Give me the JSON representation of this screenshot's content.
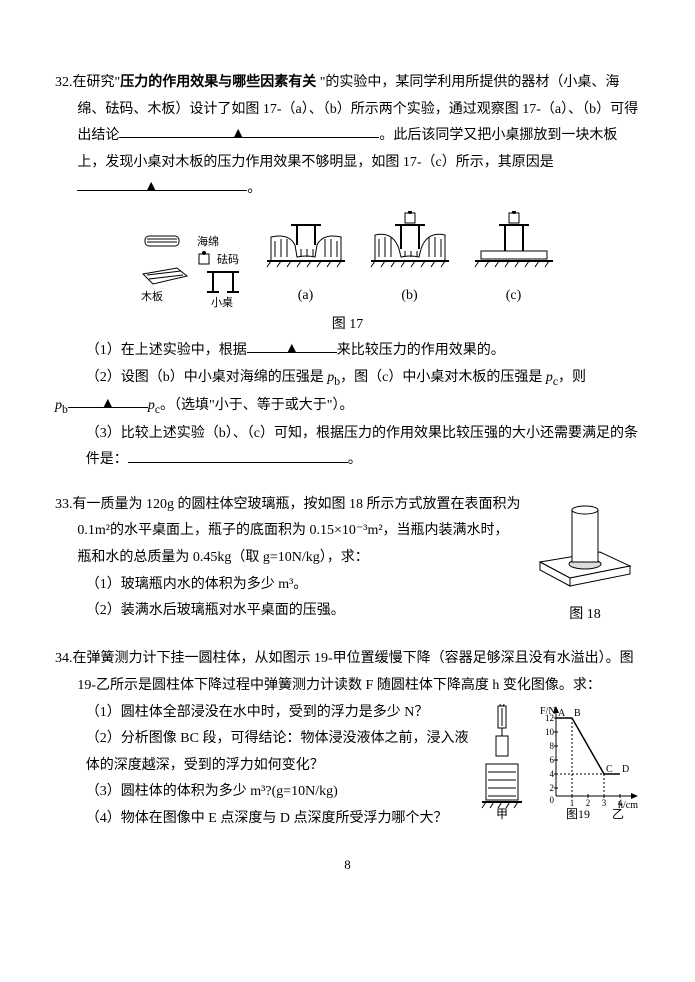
{
  "q32": {
    "num": "32.",
    "text_a": "在研究\"",
    "text_bold": "压力的作用效果与哪些因素有关",
    "text_b": "\"的实验中，某同学利用所提供的器材（小桌、海绵、砝码、木板）设计了如图 17-（a）、（b）所示两个实验，通过观察图 17-（a）、（b）可得出结论",
    "blank1_tri": "▲",
    "text_c": "。此后该同学又把小桌挪放到一块木板上，发现小桌对木板的压力作用效果不够明显，如图 17-（c）所示，其原因是",
    "blank2_tri": "▲",
    "text_d": "。",
    "fig17": {
      "left_labels": {
        "haimian": "海绵",
        "fama": "砝码",
        "muban": "木板",
        "xiaozuo": "小桌"
      },
      "sub_labels": [
        "(a)",
        "(b)",
        "(c)"
      ],
      "caption": "图 17"
    },
    "s1_a": "（1）在上述实验中，根据",
    "s1_tri": "▲",
    "s1_b": "来比较压力的作用效果的。",
    "s2_a": "（2）设图（b）中小桌对海绵的压强是 ",
    "s2_pb": "p",
    "s2_pb_sub": "b",
    "s2_b": "，图（c）中小桌对木板的压强是 ",
    "s2_pc": "p",
    "s2_pc_sub": "c",
    "s2_c": "，则",
    "s2_line2_a": "p",
    "s2_line2_a_sub": "b",
    "s2_blank_tri": "▲",
    "s2_line2_b": "p",
    "s2_line2_b_sub": "c",
    "s2_line2_c": "。（选填\"小于、等于或大于\"）。",
    "s3_a": "（3）比较上述实验（b）、（c）可知，根据压力的作用效果比较压强的大小还需要满足的条件是：",
    "s3_b": "。"
  },
  "q33": {
    "num": "33.",
    "text_a": "有一质量为 120g 的圆柱体空玻璃瓶，按如图 18 所示方式放置在表面积为 0.1m²的水平桌面上，瓶子的底面积为 0.15×10⁻³m²，当瓶内装满水时，瓶和水的总质量为 0.45kg（取 g=10N/kg），求：",
    "s1": "（1）玻璃瓶内水的体积为多少 m³。",
    "s2": "（2）装满水后玻璃瓶对水平桌面的压强。",
    "fig_caption": "图 18"
  },
  "q34": {
    "num": "34.",
    "text_a": "在弹簧测力计下挂一圆柱体，从如图示 19-甲位置缓慢下降（容器足够深且没有水溢出）。图 19-乙所示是圆柱体下降过程中弹簧测力计读数 F 随圆柱体下降高度 h 变化图像。求：",
    "s1": "（1）圆柱体全部浸没在水中时，受到的浮力是多少 N？",
    "s2": "（2）分析图像 BC 段，可得结论：物体浸没液体之前，浸入液体的深度越深，受到的浮力如何变化？",
    "s3": "（3）圆柱体的体积为多少 m³?(g=10N/kg)",
    "s4": "（4）物体在图像中 E 点深度与 D 点深度所受浮力哪个大？",
    "graph": {
      "y_label": "F/N",
      "x_label": "h/cm",
      "y_ticks": [
        "12",
        "10",
        "8",
        "6",
        "4",
        "2",
        "0"
      ],
      "x_ticks": [
        "1",
        "2",
        "3",
        "4"
      ],
      "points": [
        "A",
        "B",
        "C",
        "D"
      ],
      "seg_ab_y": 12,
      "seg_b_x": 1,
      "seg_c_x": 3,
      "seg_c_y": 4,
      "seg_d_x": 4
    },
    "fig_jia": "甲",
    "fig_caption": "图19",
    "fig_yi": "乙"
  },
  "page_num": "8"
}
